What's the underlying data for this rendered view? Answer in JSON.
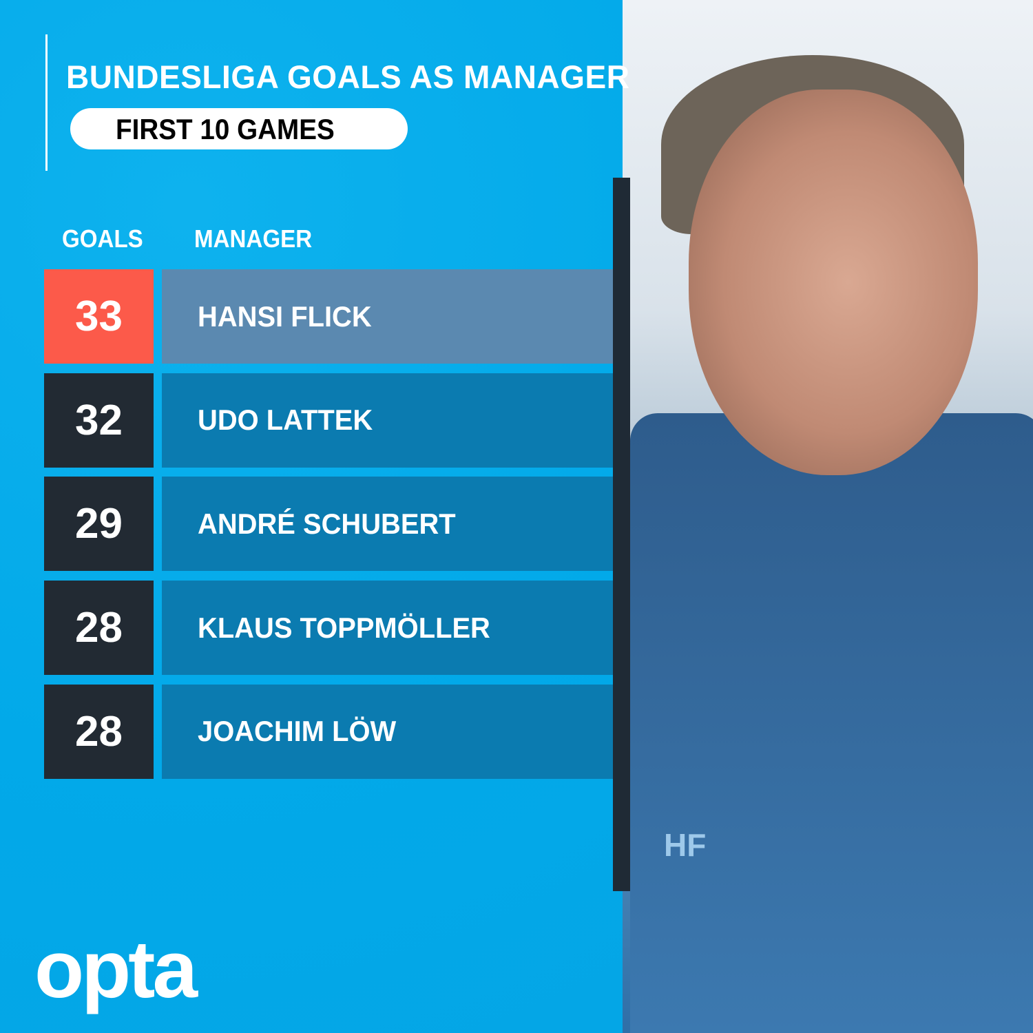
{
  "chart_data": {
    "type": "table",
    "title": "BUNDESLIGA GOALS AS MANAGER",
    "subtitle": "FIRST 10 GAMES",
    "columns": [
      "GOALS",
      "MANAGER"
    ],
    "rows": [
      {
        "goals": 33,
        "manager": "HANSI FLICK",
        "highlight": true
      },
      {
        "goals": 32,
        "manager": "UDO LATTEK",
        "highlight": false
      },
      {
        "goals": 29,
        "manager": "ANDRÉ SCHUBERT",
        "highlight": false
      },
      {
        "goals": 28,
        "manager": "KLAUS TOPPMÖLLER",
        "highlight": false
      },
      {
        "goals": 28,
        "manager": "JOACHIM LÖW",
        "highlight": false
      }
    ]
  },
  "colors": {
    "background": "#02aaea",
    "highlight_goal": "#fc5a4a",
    "highlight_name": "#5b89b0",
    "goal_box": "#222a33",
    "name_box": "#0b7bb0"
  },
  "logo": "opta",
  "photo": {
    "jacket_initials": "HF"
  }
}
